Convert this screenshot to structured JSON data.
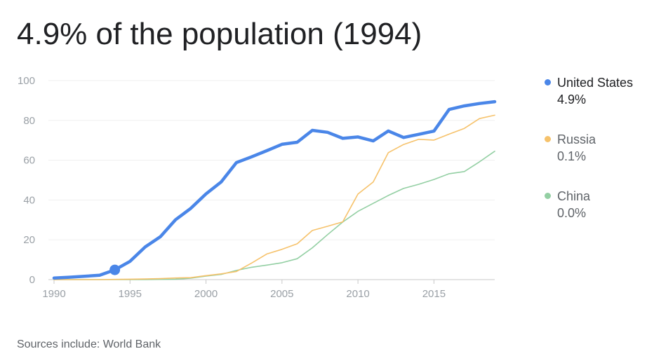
{
  "title": "4.9% of the population (1994)",
  "source": "Sources include: World Bank",
  "chart_data": {
    "type": "line",
    "xlim": [
      1990,
      2019
    ],
    "ylim": [
      0,
      100
    ],
    "yticks": [
      0,
      20,
      40,
      60,
      80,
      100
    ],
    "xticks": [
      1990,
      1995,
      2000,
      2005,
      2010,
      2015
    ],
    "grid": true,
    "legend_position": "right",
    "x": [
      1990,
      1991,
      1992,
      1993,
      1994,
      1995,
      1996,
      1997,
      1998,
      1999,
      2000,
      2001,
      2002,
      2003,
      2004,
      2005,
      2006,
      2007,
      2008,
      2009,
      2010,
      2011,
      2012,
      2013,
      2014,
      2015,
      2016,
      2017,
      2018,
      2019
    ],
    "highlight": {
      "series": "United States",
      "x": 1994,
      "y": 4.9
    },
    "series": [
      {
        "name": "United States",
        "value_label": "4.9%",
        "color": "#4a86e8",
        "width": 4.5,
        "values": [
          0.8,
          1.2,
          1.7,
          2.2,
          4.9,
          9.2,
          16.4,
          21.6,
          30.1,
          35.8,
          43.1,
          49.1,
          58.8,
          61.7,
          64.8,
          68.0,
          69.0,
          75.0,
          74.0,
          71.0,
          71.7,
          69.7,
          74.7,
          71.4,
          73.0,
          74.6,
          85.5,
          87.3,
          88.5,
          89.4
        ]
      },
      {
        "name": "Russia",
        "value_label": "0.1%",
        "color": "#f6c26b",
        "width": 1.6,
        "values": [
          0,
          0,
          0,
          0,
          0.1,
          0.2,
          0.3,
          0.5,
          0.8,
          1.0,
          2.0,
          2.9,
          4.1,
          8.3,
          12.9,
          15.2,
          18.0,
          24.7,
          26.8,
          29.0,
          43.0,
          49.0,
          63.8,
          67.9,
          70.5,
          70.1,
          73.1,
          76.0,
          80.9,
          82.6
        ]
      },
      {
        "name": "China",
        "value_label": "0.0%",
        "color": "#93cfa3",
        "width": 1.6,
        "values": [
          0,
          0,
          0,
          0,
          0,
          0,
          0,
          0.1,
          0.2,
          0.7,
          1.8,
          2.6,
          4.6,
          6.2,
          7.3,
          8.5,
          10.5,
          16.0,
          22.6,
          28.9,
          34.3,
          38.3,
          42.3,
          45.8,
          47.9,
          50.3,
          53.2,
          54.3,
          59.2,
          64.5
        ]
      }
    ]
  }
}
